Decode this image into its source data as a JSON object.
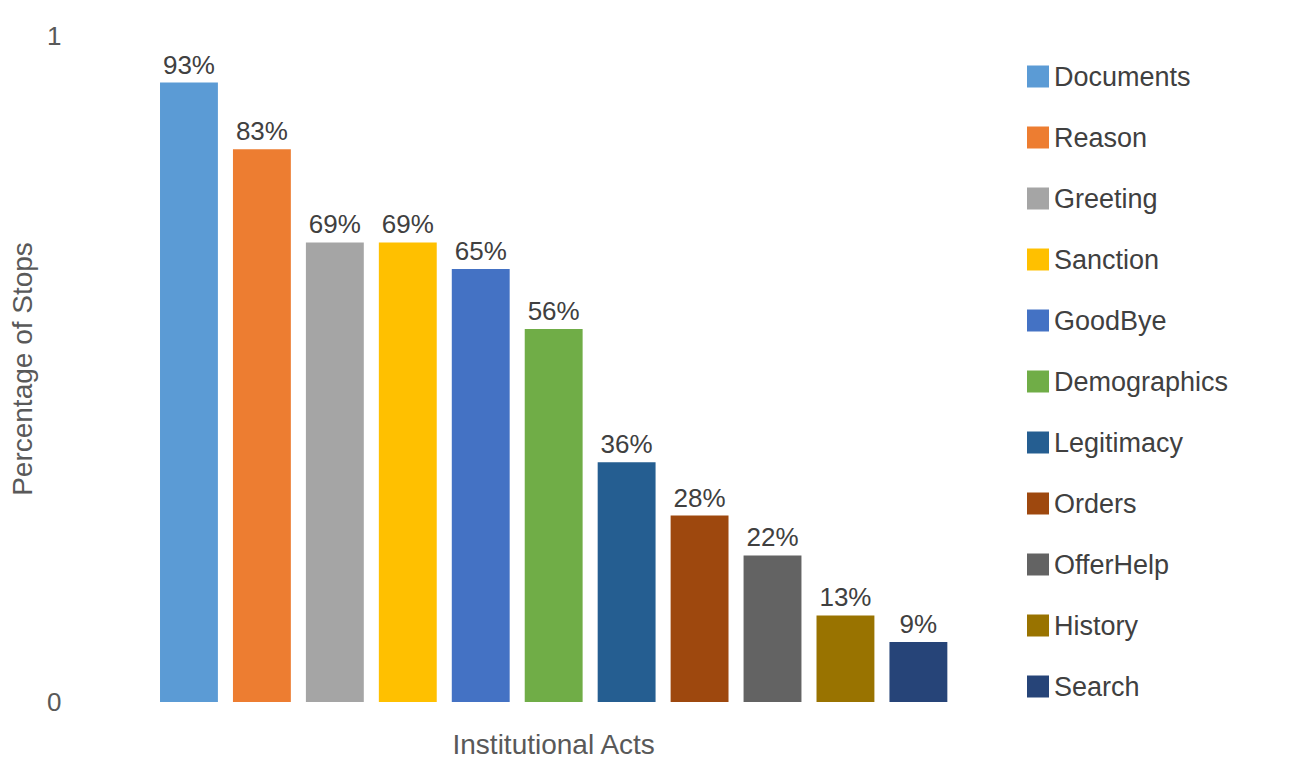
{
  "chart_data": {
    "type": "bar",
    "x_label": "Institutional Acts",
    "y_label": "Percentage of Stops",
    "categories": [
      null
    ],
    "series": [
      {
        "name": "Documents",
        "color": "#5B9BD5",
        "values": [
          0.93
        ],
        "value_labels": [
          "93%"
        ]
      },
      {
        "name": "Reason",
        "color": "#ED7D31",
        "values": [
          0.83
        ],
        "value_labels": [
          "83%"
        ]
      },
      {
        "name": "Greeting",
        "color": "#A5A5A5",
        "values": [
          0.69
        ],
        "value_labels": [
          "69%"
        ]
      },
      {
        "name": "Sanction",
        "color": "#FFC000",
        "values": [
          0.69
        ],
        "value_labels": [
          "69%"
        ]
      },
      {
        "name": "GoodBye",
        "color": "#4472C4",
        "values": [
          0.65
        ],
        "value_labels": [
          "65%"
        ]
      },
      {
        "name": "Demographics",
        "color": "#70AD47",
        "values": [
          0.56
        ],
        "value_labels": [
          "56%"
        ]
      },
      {
        "name": "Legitimacy",
        "color": "#255E91",
        "values": [
          0.36
        ],
        "value_labels": [
          "36%"
        ]
      },
      {
        "name": "Orders",
        "color": "#9E480E",
        "values": [
          0.28
        ],
        "value_labels": [
          "28%"
        ]
      },
      {
        "name": "OfferHelp",
        "color": "#636363",
        "values": [
          0.22
        ],
        "value_labels": [
          "22%"
        ]
      },
      {
        "name": "History",
        "color": "#997300",
        "values": [
          0.13
        ],
        "value_labels": [
          "13%"
        ]
      },
      {
        "name": "Search",
        "color": "#264478",
        "values": [
          0.09
        ],
        "value_labels": [
          "9%"
        ]
      }
    ],
    "ylim": [
      0,
      1
    ],
    "yticks": [
      0,
      1
    ],
    "grid": false,
    "legend": "right",
    "data_labels": true,
    "tick_labels": "y"
  }
}
